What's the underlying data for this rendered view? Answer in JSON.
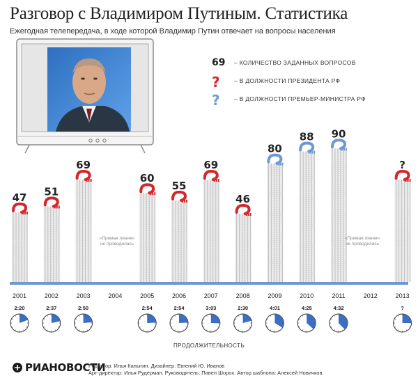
{
  "header": {
    "title": "Разговор с Владимиром Путиным. Статистика",
    "subtitle": "Ежегодная телепередача, в ходе которой Владимир Путин отвечает на вопросы населения"
  },
  "legend": {
    "sample_number": "69",
    "items": [
      {
        "marker": "",
        "text": "– КОЛИЧЕСТВО ЗАДАННЫХ ВОПРОСОВ"
      },
      {
        "marker": "?",
        "text": "– В ДОЛЖНОСТИ ПРЕЗИДЕНТА РФ",
        "color": "#d2282c"
      },
      {
        "marker": "?",
        "text": "– В ДОЛЖНОСТИ ПРЕМЬЕР-МИНИСТРА РФ",
        "color": "#6f98d2"
      }
    ]
  },
  "no_broadcast_note": {
    "line1": "«Прямая линия»",
    "line2": "не проводилась"
  },
  "duration_label": "ПРОДОЛЖИТЕЛЬНОСТЬ",
  "colors": {
    "president": "#d2282c",
    "premier": "#6f98d2",
    "stack": "#b8b8b8",
    "baseline": "#6f98d2",
    "clock": "#3a6fc4"
  },
  "icons": [
    "tv-icon",
    "question-icon",
    "clock-icon",
    "ria-logo-icon"
  ],
  "chart_data": {
    "type": "bar",
    "categories": [
      "2001",
      "2002",
      "2003",
      "2004",
      "2005",
      "2006",
      "2007",
      "2008",
      "2009",
      "2010",
      "2011",
      "2012",
      "2013"
    ],
    "values": [
      47,
      51,
      69,
      null,
      60,
      55,
      69,
      46,
      80,
      88,
      90,
      null,
      null
    ],
    "value_labels": [
      "47",
      "51",
      "69",
      "",
      "60",
      "55",
      "69",
      "46",
      "80",
      "88",
      "90",
      "",
      "?"
    ],
    "position": [
      "president",
      "president",
      "president",
      "",
      "president",
      "president",
      "president",
      "president",
      "premier",
      "premier",
      "premier",
      "",
      "president"
    ],
    "durations": [
      "2:20",
      "2:37",
      "2:50",
      "",
      "2:54",
      "2:54",
      "3:03",
      "2:30",
      "4:01",
      "4:25",
      "4:32",
      "",
      "?"
    ],
    "title": "",
    "xlabel": "",
    "ylabel": "",
    "ylim": [
      0,
      100
    ]
  },
  "footer": {
    "logo": "РИАНОВОСТИ",
    "credits_line1": "Редактор: Илья Каныгин. Дизайнер: Евгений Ю. Иванов",
    "credits_line2": "Арт-директор: Илья Рудерман. Руководитель: Павел Шорох. Автор шаблона: Алексей Новичков."
  }
}
